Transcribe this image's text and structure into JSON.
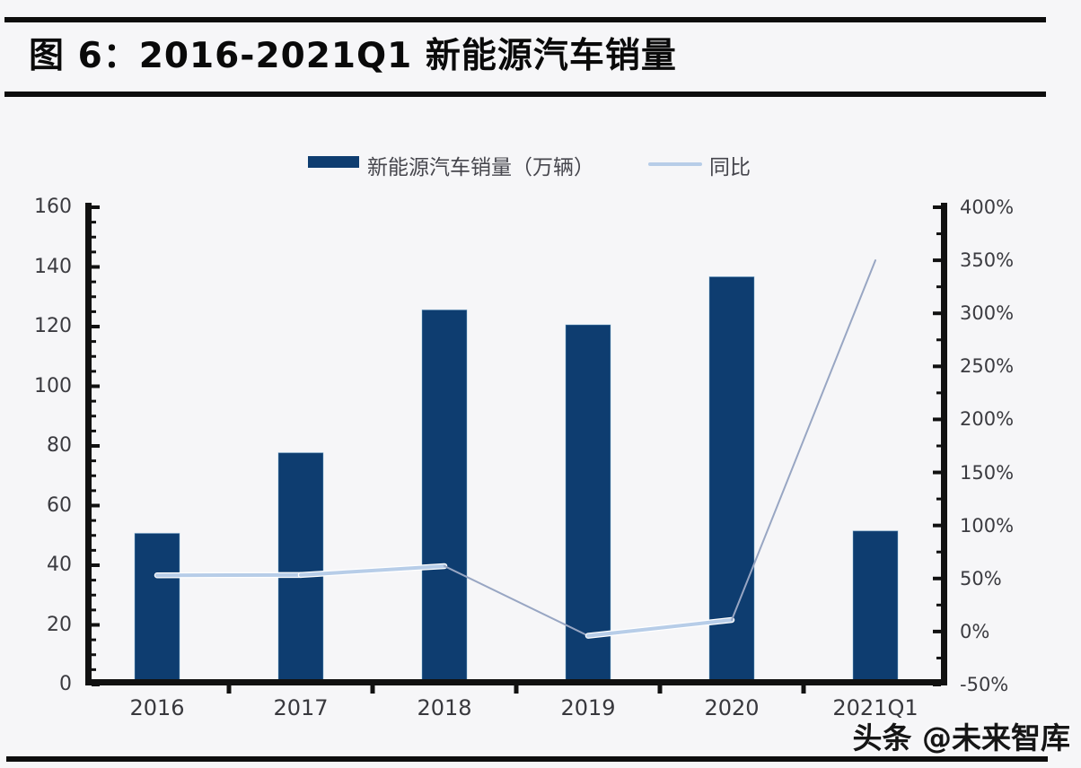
{
  "header": {
    "title": "图 6：2016-2021Q1 新能源汽车销量"
  },
  "legend": [
    {
      "label": "新能源汽车销量（万辆）",
      "swatch": "bar-swatch",
      "color": "#0e3d70"
    },
    {
      "label": "同比",
      "swatch": "line-swatch",
      "color": "#b7cde8"
    }
  ],
  "watermark": "头条 @未来智库",
  "colors": {
    "page_bg": "#f6f6f8",
    "rule": "#0d0d0d",
    "axis": "#111111",
    "bar": "#0e3d70",
    "bar_edge_halo": "#7fb3d8",
    "line": "#b7cde8",
    "line_thin": "#98a6c3",
    "tick_label": "#3b3b40",
    "title": "#0a0a0a"
  },
  "chart_data": {
    "type": "combo-bar-line",
    "title": "图 6：2016-2021Q1 新能源汽车销量",
    "categories": [
      "2016",
      "2017",
      "2018",
      "2019",
      "2020",
      "2021Q1"
    ],
    "series": [
      {
        "name": "新能源汽车销量（万辆）",
        "type": "bar",
        "axis": "left",
        "unit": "万辆",
        "color": "#0e3d70",
        "values": [
          50.7,
          77.7,
          125.6,
          120.6,
          136.7,
          51.5
        ]
      },
      {
        "name": "同比",
        "type": "line",
        "axis": "right",
        "unit": "%",
        "color": "#b7cde8",
        "values": [
          53,
          53.3,
          61.7,
          -4,
          10.9,
          350
        ]
      }
    ],
    "left_axis": {
      "min": 0,
      "max": 160,
      "step": 20,
      "tick_labels": [
        "0",
        "20",
        "40",
        "60",
        "80",
        "100",
        "120",
        "140",
        "160"
      ]
    },
    "right_axis": {
      "min": -50,
      "max": 400,
      "step": 50,
      "tick_labels": [
        "-50%",
        "0%",
        "50%",
        "100%",
        "150%",
        "200%",
        "250%",
        "300%",
        "350%",
        "400%"
      ]
    },
    "grid": false,
    "legend_position": "top-center",
    "line_style": {
      "thick_width": 4,
      "thin_width": 2,
      "thin_segments": [
        2,
        4
      ]
    }
  }
}
